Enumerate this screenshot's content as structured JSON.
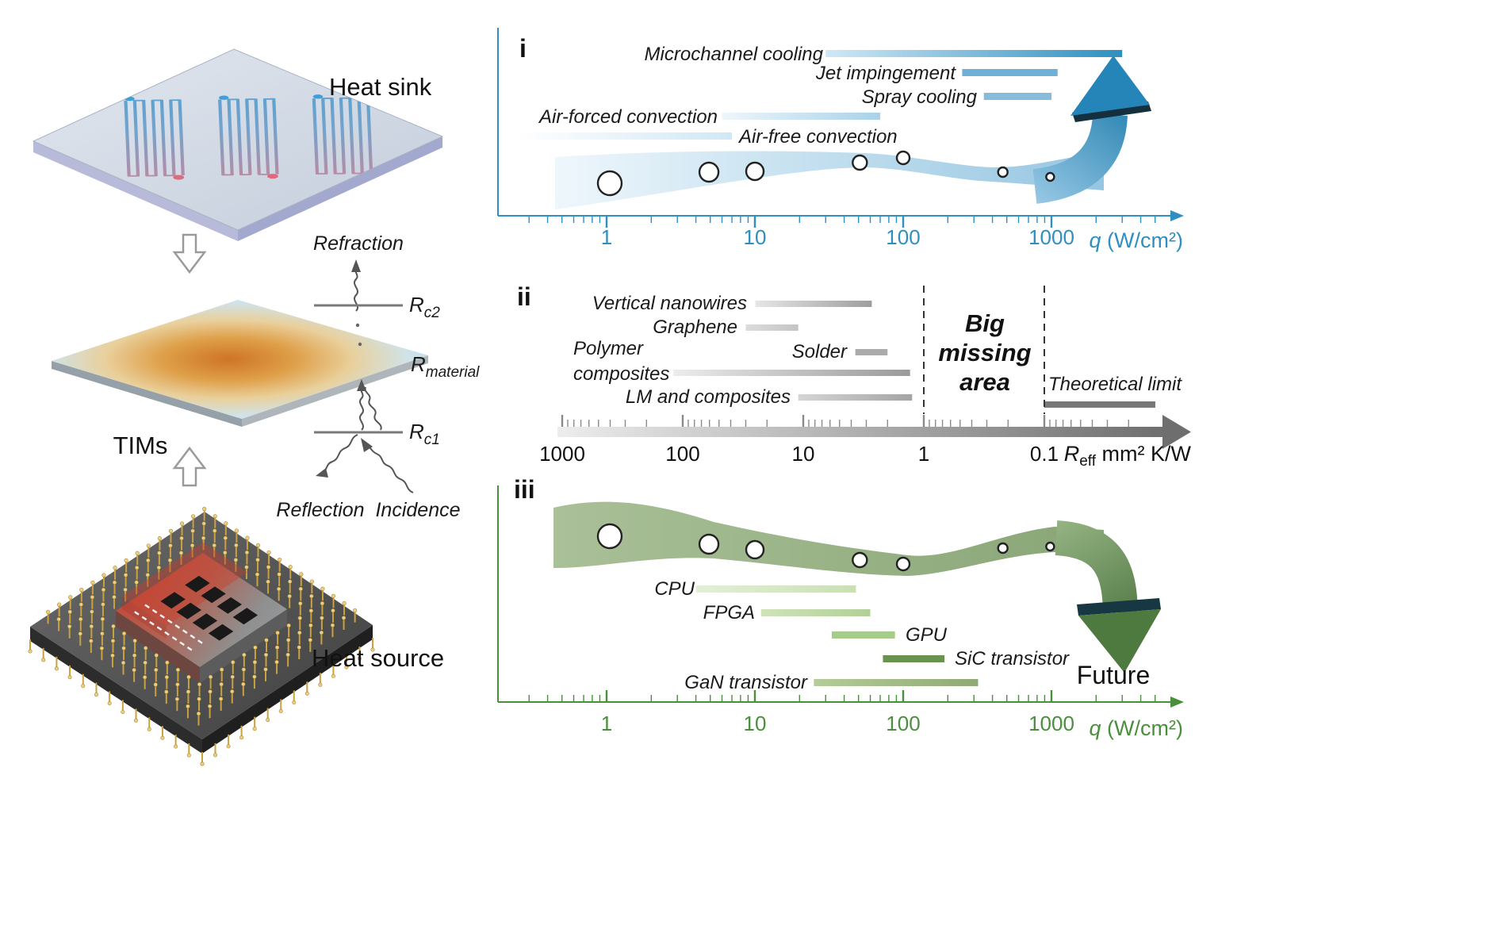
{
  "left": {
    "heat_sink_label": "Heat sink",
    "tims_label": "TIMs",
    "heat_source_label": "Heat source",
    "optics": {
      "refraction": "Refraction",
      "reflection": "Reflection",
      "incidence": "Incidence",
      "r_symbol": "R",
      "rc2_sub": "c2",
      "rc1_sub": "c1",
      "rmaterial_sub": "material"
    }
  },
  "colors": {
    "panel_i_accent": "#2e8fc0",
    "panel_ii_axis": "#6e6e6e",
    "panel_iii_accent": "#4a8f3c"
  },
  "chart_data": [
    {
      "id": "panel_i",
      "numeral": "i",
      "type": "range-bars-log",
      "axis": {
        "label_var": "q",
        "label_rest": " (W/cm²)",
        "ticks": [
          1,
          10,
          100,
          1000
        ],
        "scale": "log",
        "color": "#2e8fc0",
        "min": 0.3,
        "max": 3200
      },
      "bars": [
        {
          "name": "Microchannel cooling",
          "from": 30,
          "to": 3000,
          "color": "#cfe8f5",
          "color2": "#2e8fc0"
        },
        {
          "name": "Jet impingement",
          "from": 250,
          "to": 1100,
          "color": "#6fb0d6"
        },
        {
          "name": "Spray cooling",
          "from": 350,
          "to": 1000,
          "color": "#85bcd9"
        },
        {
          "name": "Air-forced convection",
          "from": 6,
          "to": 70,
          "color": "#eef6fb",
          "color2": "#a8d2e8"
        },
        {
          "name": "Air-free convection",
          "from": 0.25,
          "to": 7,
          "color": "#ffffff",
          "color2": "#cfe8f5"
        }
      ],
      "trend_markers_q": [
        1.05,
        4.9,
        10,
        51,
        100,
        470,
        980
      ]
    },
    {
      "id": "panel_ii",
      "numeral": "ii",
      "type": "range-bars-log-reversed",
      "axis": {
        "label_var": "R",
        "label_sub": "eff",
        "label_rest": " mm² K/W",
        "ticks": [
          1000,
          100,
          10,
          1,
          0.1
        ],
        "scale": "log-reversed",
        "color": "#6e6e6e"
      },
      "bars": [
        {
          "name": "Vertical nanowires",
          "from": 25,
          "to": 2.7,
          "color": "#e6e6e6",
          "color2": "#9e9e9e"
        },
        {
          "name": "Graphene",
          "from": 30,
          "to": 11,
          "color": "#dcdcdc",
          "color2": "#c4c4c4"
        },
        {
          "name": "Solder",
          "from": 3.7,
          "to": 2.0,
          "color": "#ababab"
        },
        {
          "name": "Polymer composites",
          "from": 120,
          "to": 1.3,
          "color": "#ececec",
          "color2": "#9a9a9a"
        },
        {
          "name": "LM and composites",
          "from": 11,
          "to": 1.25,
          "color": "#d5d5d5",
          "color2": "#a4a4a4"
        },
        {
          "name": "Theoretical limit",
          "from": 0.1,
          "to": 0.012,
          "color": "#787878"
        }
      ],
      "annotation": "Big missing area",
      "dashed_lines_at": [
        1,
        0.1
      ]
    },
    {
      "id": "panel_iii",
      "numeral": "iii",
      "type": "range-bars-log",
      "axis": {
        "label_var": "q",
        "label_rest": " (W/cm²)",
        "ticks": [
          1,
          10,
          100,
          1000
        ],
        "scale": "log",
        "color": "#4a8f3c",
        "min": 0.3,
        "max": 3200
      },
      "bars": [
        {
          "name": "CPU",
          "from": 4,
          "to": 48,
          "color": "#e3efd7",
          "color2": "#c9e0b4"
        },
        {
          "name": "FPGA",
          "from": 11,
          "to": 60,
          "color": "#cfe3b8",
          "color2": "#b1d096"
        },
        {
          "name": "GPU",
          "from": 33,
          "to": 88,
          "color": "#a5cc8a"
        },
        {
          "name": "SiC transistor",
          "from": 73,
          "to": 190,
          "color": "#69924f"
        },
        {
          "name": "GaN transistor",
          "from": 25,
          "to": 320,
          "color": "#b3cc9a",
          "color2": "#8fa977"
        }
      ],
      "trend_markers_q": [
        1.05,
        4.9,
        10,
        51,
        100,
        470,
        980
      ],
      "future_label": "Future"
    }
  ]
}
